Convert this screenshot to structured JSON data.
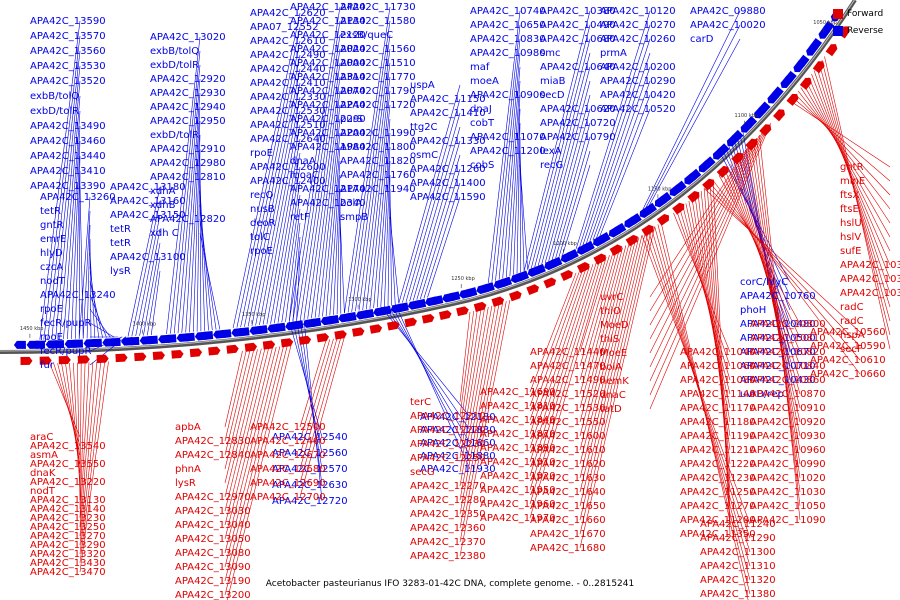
{
  "legend": {
    "forward_label": "Forward",
    "reverse_label": "Reverse",
    "forward_color": "#e00000",
    "reverse_color": "#0000e6"
  },
  "caption": "Acetobacter pasteurianus IFO 3283-01-42C DNA, complete genome. - 0..2815241",
  "colors": {
    "forward": "#e00000",
    "reverse": "#0000e6",
    "backbone": "#555555"
  },
  "scale_ticks": [
    "1450 kbp",
    "1400 kbp",
    "1350 kbp",
    "1300 kbp",
    "1250 kbp",
    "1200 kbp",
    "1150 kbp",
    "1100 kbp",
    "1050 kbp"
  ],
  "reverse_genes": [
    "APA42C_13590",
    "APA42C_13570",
    "APA42C_13560",
    "APA42C_13530",
    "APA42C_13520",
    "exbB/tolQ",
    "exbD/tolR",
    "APA42C_13490",
    "APA42C_13460",
    "APA42C_13440",
    "APA42C_13410",
    "APA42C_13390",
    "APA42C_13260",
    "tetR",
    "gntR",
    "emrE",
    "hlyD",
    "czcA",
    "nodT",
    "APA42C_13240",
    "rpoE",
    "fecR/pupR",
    "rpoE",
    "fecR/pupR",
    "fur",
    "APA42C_13180",
    "APA42C_13160",
    "APA42C_13150",
    "tetR",
    "tetR",
    "APA42C_13100",
    "lysR",
    "APA42C_13020",
    "exbB/tolQ",
    "exbD/tolR",
    "APA42C_12920",
    "APA42C_12930",
    "APA42C_12940",
    "APA42C_12950",
    "exbD/tolR",
    "APA42C_12910",
    "APA42C_12980",
    "APA42C_12810",
    "xdhA",
    "xdhB",
    "APA42C_12820",
    "xdh C",
    "APA42C_12620",
    "APA07_12552",
    "APA42C_12610",
    "APA42C_12490",
    "APA42C_12440",
    "APA42C_12410",
    "APA42C_12330",
    "APA42C_12530",
    "APA42C_12510",
    "APA42C_12640",
    "rpoE",
    "APA42C_12600",
    "APA42C_12400",
    "recQ",
    "nusB",
    "deoR",
    "tolC",
    "rpoE",
    "APA42C_12420",
    "APA42C_12130",
    "APA42C_12120",
    "APA42C_12020",
    "APA42C_12000",
    "APA42C_12310",
    "APA42C_12070",
    "APA42C_12240",
    "APA42C_12290",
    "APA42C_12200",
    "APA42C_11980",
    "dnaA",
    "moaC",
    "APA42C_12170",
    "APA42C_12340",
    "retF",
    "APA42C_11730",
    "APA42C_11580",
    "exsB/queC",
    "APA42C_11560",
    "APA42C_11510",
    "APA42C_11770",
    "APA42C_11790",
    "APA42C_11720",
    "purS",
    "APA42C_11990",
    "APA42C_11800",
    "APA42C_11820",
    "APA42C_11760",
    "APA42C_11940",
    "bolA",
    "smpB",
    "uspA",
    "APA42C_11150",
    "APA42C_11410",
    "ttg2C",
    "APA42C_11330",
    "osmC",
    "APA42C_11260",
    "APA42C_11400",
    "APA42C_11590",
    "APA42C_10740",
    "APA42C_10650",
    "APA42C_10830",
    "APA42C_10980",
    "maf",
    "moeA",
    "APA42C_10900",
    "dnaJ",
    "cobT",
    "APA42C_11070",
    "APA42C_11200",
    "cobS",
    "APA42C_10380",
    "APA42C_10490",
    "APA42C_10680",
    "smc",
    "APA42C_10640",
    "miaB",
    "secD",
    "APA42C_10620",
    "APA42C_10720",
    "APA42C_10790",
    "lexA",
    "recG",
    "APA42C_10120",
    "APA42C_10270",
    "APA42C_10260",
    "prmA",
    "APA42C_10200",
    "APA42C_10290",
    "APA42C_10420",
    "APA42C_10520",
    "APA42C_09880",
    "APA42C_10020",
    "carD",
    "APA42C_12180",
    "APA42C_11830",
    "APA42C_11860",
    "APA42C_11880",
    "APA42C_11930",
    "APA42C_12540",
    "APA42C_12560",
    "APA42C_12570",
    "APA42C_12630",
    "APA42C_12720",
    "corC/hlyC",
    "APA42C_10760",
    "phoH",
    "APA42C_10480",
    "APA42C_10500",
    "APA42C_10670",
    "APA42C_10710",
    "APA42C_10430",
    "uvrD/rep"
  ],
  "forward_upper": [
    "gntR",
    "minE",
    "ftsX",
    "ftsE",
    "hslU",
    "hslV",
    "sufE",
    "APA42C_10340",
    "APA42C_10370",
    "APA42C_10390",
    "radC",
    "radC",
    "hspA",
    "secF",
    "uvrC",
    "thiO",
    "MoeD",
    "thiS",
    "MoeE",
    "bolA",
    "hemK",
    "dnaC",
    "tatD",
    "APA42C_10800",
    "APA42C_10810",
    "APA42C_10820",
    "APA42C_10840",
    "APA42C_10860",
    "APA42C_10870",
    "APA42C_10910",
    "APA42C_10920",
    "APA42C_10930",
    "APA42C_10960",
    "APA42C_10990",
    "APA42C_11020",
    "APA42C_11030",
    "APA42C_11050",
    "APA42C_11090",
    "APA42C_10560",
    "APA42C_10590",
    "APA42C_10610",
    "APA42C_10660",
    "APA42C_11040",
    "APA42C_11060",
    "APA42C_11080",
    "APA42C_11140",
    "APA42C_11170",
    "APA42C_11180",
    "APA42C_11190",
    "APA42C_11210",
    "APA42C_11220",
    "APA42C_11230",
    "APA42C_11250",
    "APA42C_11270",
    "APA42C_11280",
    "APA42C_11350",
    "APA42C_11440",
    "APA42C_11470",
    "APA42C_11490",
    "APA42C_11520",
    "APA42C_11530",
    "APA42C_11550",
    "APA42C_11600",
    "APA42C_11610",
    "APA42C_11620",
    "APA42C_11630",
    "APA42C_11640",
    "APA42C_11650",
    "APA42C_11660",
    "APA42C_11670",
    "APA42C_11680",
    "APA42C_11690",
    "APA42C_11810",
    "APA42C_11840",
    "APA42C_11870",
    "APA42C_11890",
    "APA42C_11910",
    "APA42C_11920",
    "APA42C_11950",
    "APA42C_11960",
    "APA42C_11970",
    "APA42C_11240",
    "APA42C_11290",
    "APA42C_11300",
    "APA42C_11310",
    "APA42C_11320",
    "APA42C_11380",
    "APA42C_11390",
    "terC",
    "APA42C_12210",
    "APA42C_12220",
    "APA42C_12230",
    "APA42C_12250",
    "secG",
    "APA42C_12270",
    "APA42C_12280",
    "APA42C_12350",
    "APA42C_12360",
    "APA42C_12370",
    "APA42C_12380",
    "APA42C_12500",
    "APA42C_12460",
    "APA42C_12670",
    "APA42C_12680",
    "APA42C_12690",
    "APA42C_12700",
    "apbA",
    "APA42C_12830",
    "APA42C_12840",
    "phnA",
    "lysR",
    "APA42C_12970",
    "APA42C_13030",
    "APA42C_13040",
    "APA42C_13050",
    "APA42C_13080",
    "APA42C_13090",
    "APA42C_13190",
    "APA42C_13200",
    "marR/hxlR"
  ],
  "forward_lower": [
    "araC",
    "APA42C_13540",
    "asmA",
    "APA42C_13550",
    "dnaK",
    "APA42C_13220",
    "nodT",
    "APA42C_13130",
    "APA42C_13140",
    "APA42C_13230",
    "APA42C_13250",
    "APA42C_13270",
    "APA42C_13290",
    "APA42C_13320",
    "APA42C_13430",
    "APA42C_13470"
  ]
}
